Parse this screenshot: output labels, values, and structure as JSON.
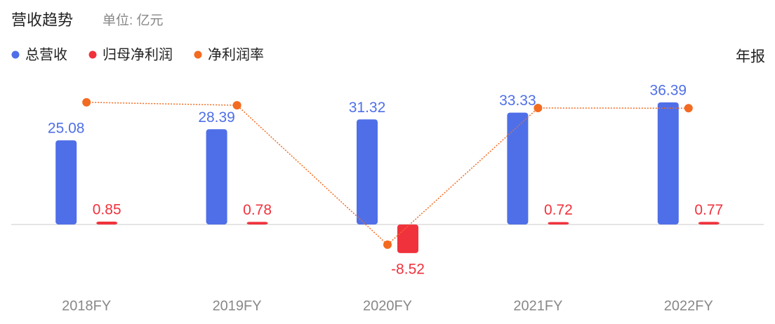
{
  "chart_data": {
    "type": "bar",
    "title": "营收趋势",
    "subtitle": "单位: 亿元",
    "period": "年报",
    "categories": [
      "2018FY",
      "2019FY",
      "2020FY",
      "2021FY",
      "2022FY"
    ],
    "series": [
      {
        "name": "总营收",
        "color": "#4f6fe8",
        "values": [
          25.08,
          28.39,
          31.32,
          33.33,
          36.39
        ]
      },
      {
        "name": "归母净利润",
        "color": "#f0323c",
        "values": [
          0.85,
          0.78,
          -8.52,
          0.72,
          0.77
        ]
      },
      {
        "name": "净利润率",
        "type": "line",
        "axis": "y2",
        "color": "#f26b21",
        "values": [
          3.39,
          2.75,
          -27.2,
          2.16,
          2.12
        ]
      }
    ],
    "ylim": [
      -16.7,
      46
    ],
    "y2lim": [
      -34.9,
      10.3
    ]
  }
}
